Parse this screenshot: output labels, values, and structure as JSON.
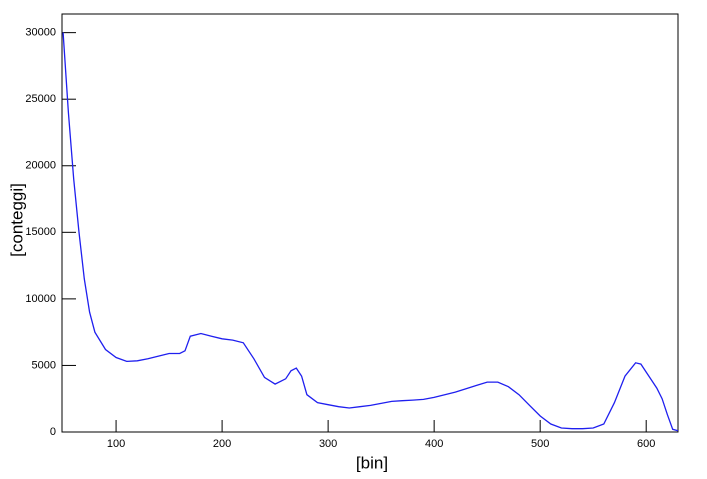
{
  "chart_data": {
    "type": "line",
    "x_label": "[bin]",
    "y_label": "[conteggi]",
    "x": [
      50,
      55,
      60,
      65,
      70,
      75,
      80,
      90,
      100,
      110,
      120,
      130,
      140,
      150,
      160,
      165,
      170,
      180,
      190,
      200,
      210,
      220,
      230,
      240,
      250,
      260,
      265,
      270,
      275,
      280,
      290,
      300,
      310,
      320,
      330,
      340,
      350,
      360,
      370,
      380,
      390,
      400,
      410,
      420,
      430,
      440,
      450,
      460,
      470,
      480,
      490,
      500,
      510,
      520,
      530,
      540,
      550,
      560,
      570,
      580,
      590,
      595,
      600,
      610,
      615,
      620,
      625,
      630
    ],
    "series": [
      {
        "color": "#1f1fef",
        "values": [
          30000,
          24000,
          19000,
          15000,
          11500,
          9000,
          7500,
          6200,
          5600,
          5300,
          5350,
          5500,
          5700,
          5900,
          5900,
          6100,
          7200,
          7400,
          7200,
          7000,
          6900,
          6700,
          5500,
          4100,
          3600,
          4000,
          4600,
          4800,
          4200,
          2800,
          2200,
          2050,
          1900,
          1800,
          1900,
          2000,
          2150,
          2300,
          2350,
          2400,
          2450,
          2600,
          2800,
          3000,
          3250,
          3500,
          3750,
          3750,
          3400,
          2800,
          2000,
          1200,
          600,
          300,
          250,
          250,
          300,
          600,
          2200,
          4200,
          5200,
          5100,
          4500,
          3300,
          2500,
          1300,
          200,
          100
        ]
      }
    ],
    "xlim": [
      49,
      630
    ],
    "ylim": [
      0,
      31400
    ],
    "xticks": [
      100,
      200,
      300,
      400,
      500,
      600
    ],
    "yticks": [
      0,
      5000,
      10000,
      15000,
      20000,
      25000,
      30000
    ]
  }
}
